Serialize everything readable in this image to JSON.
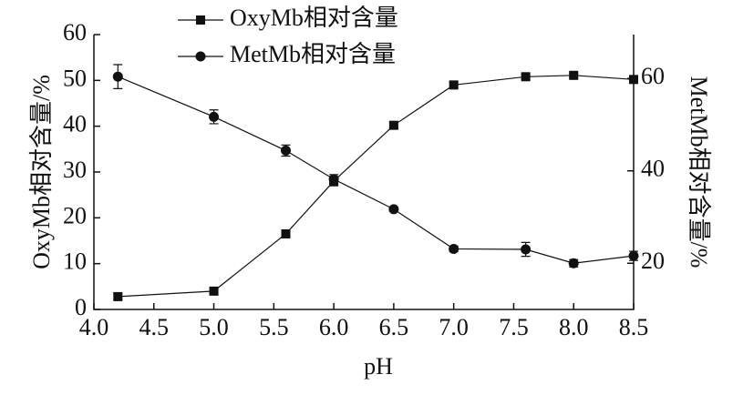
{
  "chart_data": {
    "type": "line",
    "x_label": "pH",
    "y_label": "OxyMb相对含量/%",
    "y2_label": "MetMb相对含量/%",
    "xlim": [
      4,
      8.5
    ],
    "xticks": [
      {
        "value": 4,
        "label": "4.0"
      },
      {
        "value": 4.5,
        "label": "4.5"
      },
      {
        "value": 5,
        "label": "5.0"
      },
      {
        "value": 5.5,
        "label": "5.5"
      },
      {
        "value": 6,
        "label": "6.0"
      },
      {
        "value": 6.5,
        "label": "6.5"
      },
      {
        "value": 7,
        "label": "7.0"
      },
      {
        "value": 7.5,
        "label": "7.5"
      },
      {
        "value": 8,
        "label": "8.0"
      },
      {
        "value": 8.5,
        "label": "8.5"
      }
    ],
    "ylim": [
      0,
      60
    ],
    "yticks": [
      0,
      10,
      20,
      30,
      40,
      50,
      60
    ],
    "y2lim": [
      10,
      69.5
    ],
    "y2ticks": [
      20,
      40,
      60
    ],
    "x": [
      4.2,
      5.0,
      5.6,
      6.0,
      6.5,
      7.0,
      7.6,
      8.0,
      8.5
    ],
    "series": [
      {
        "name": "OxyMb相对含量",
        "color": "#111111",
        "marker": "square",
        "values": [
          2.8,
          4.0,
          16.5,
          28,
          40.2,
          49,
          50.8,
          51.1,
          50.2
        ],
        "errors": [
          0.6,
          0.6,
          0.6,
          1.0,
          0.6,
          0.6,
          0.5,
          0.5,
          0.4
        ]
      },
      {
        "name": "MetMb相对含量",
        "color": "#111111",
        "marker": "circle",
        "axis": "y2",
        "values": [
          60.4,
          51.7,
          44.4,
          38.2,
          31.7,
          23.1,
          23,
          20,
          21.6
        ],
        "errors": [
          2.6,
          1.5,
          1.2,
          1.0,
          0.5,
          0.6,
          1.5,
          0.8,
          1.0
        ]
      }
    ]
  }
}
